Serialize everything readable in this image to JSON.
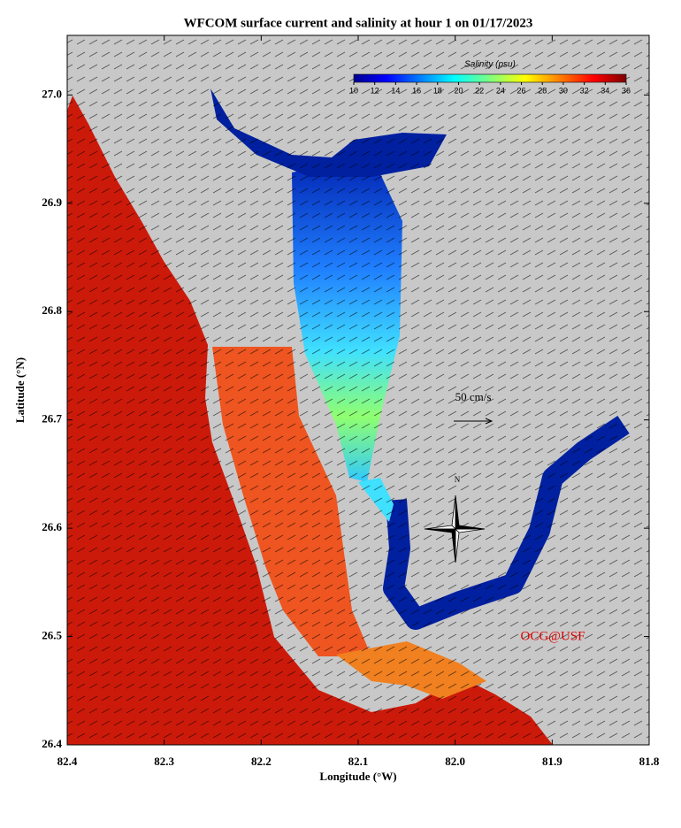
{
  "map": {
    "title": "WFCOM surface current and salinity at hour 1 on 01/17/2023",
    "x_label": "Longitude (°W)",
    "y_label": "Latitude (°N)",
    "xlim": [
      82.4,
      81.8
    ],
    "xticks": [
      82.4,
      82.3,
      82.2,
      82.1,
      {
        "value": 82,
        "label": "82.0"
      },
      81.9,
      81.8
    ],
    "ylim": [
      26.4,
      27.055
    ],
    "yticks": [
      26.4,
      26.5,
      26.6,
      26.7,
      26.8,
      26.9,
      {
        "value": 27,
        "label": "27.0"
      }
    ],
    "colorbar": {
      "title": "Salinity (psu)",
      "lim": [
        10,
        36
      ],
      "ticks": [
        10,
        12,
        14,
        16,
        18,
        20,
        22,
        24,
        26,
        28,
        30,
        32,
        34,
        36
      ]
    },
    "scale_label": "50 cm/s",
    "compass_label": "N",
    "credit": "OCG@USF"
  }
}
